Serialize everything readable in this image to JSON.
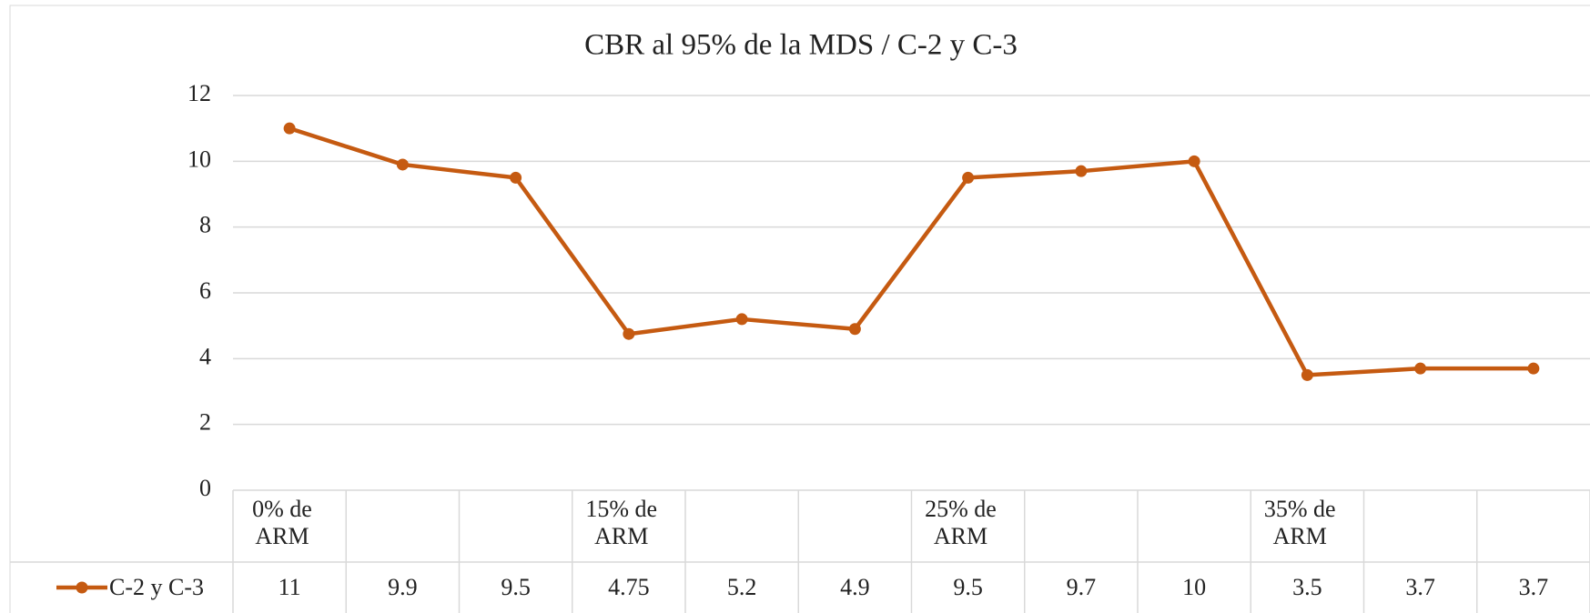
{
  "chart_data": {
    "type": "line",
    "title": "CBR al 95% de la MDS / C-2 y C-3",
    "categories": [
      "0% de ARM",
      null,
      null,
      "15% de ARM",
      null,
      null,
      "25% de ARM",
      null,
      null,
      "35% de ARM",
      null,
      null
    ],
    "series": [
      {
        "name": "C-2 y C-3",
        "color": "#c55a11",
        "values": [
          11,
          9.9,
          9.5,
          4.75,
          5.2,
          4.9,
          9.5,
          9.7,
          10,
          3.5,
          3.7,
          3.7
        ]
      }
    ],
    "ylim": [
      0,
      12
    ],
    "yticks": [
      0,
      2,
      4,
      6,
      8,
      10,
      12
    ],
    "grid": true,
    "data_table": true
  }
}
